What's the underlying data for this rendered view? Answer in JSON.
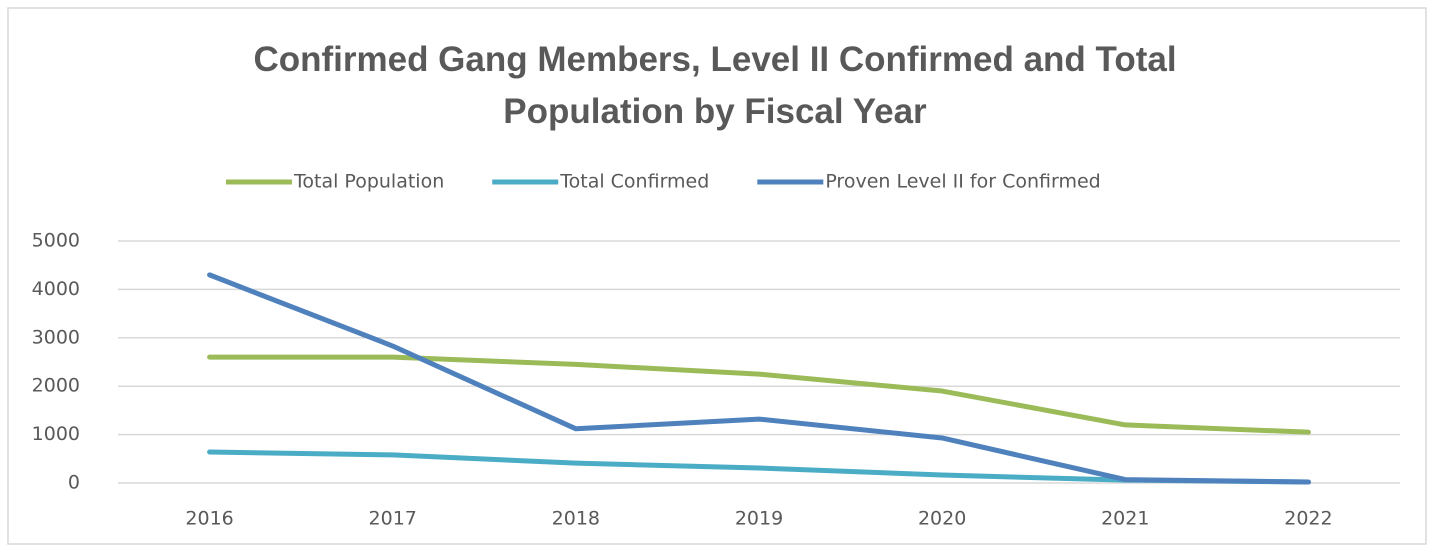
{
  "chart_data": {
    "type": "line",
    "title": "Confirmed Gang Members, Level II Confirmed and Total Population by Fiscal Year",
    "categories": [
      "2016",
      "2017",
      "2018",
      "2019",
      "2020",
      "2021",
      "2022"
    ],
    "series": [
      {
        "name": "Total Population",
        "color": "#9bbb59",
        "values": [
          2600,
          2600,
          2450,
          2250,
          1900,
          1200,
          1050
        ]
      },
      {
        "name": "Total Confirmed",
        "color": "#4bacc6",
        "values": [
          640,
          580,
          410,
          310,
          165,
          60,
          20
        ]
      },
      {
        "name": "Proven Level II for Confirmed",
        "color": "#4f81bd",
        "values": [
          4300,
          2830,
          1120,
          1320,
          930,
          70,
          20
        ]
      }
    ],
    "ylim": [
      0,
      5000
    ],
    "yticks": [
      0,
      1000,
      2000,
      3000,
      4000,
      5000
    ],
    "grid": true,
    "legend": "top"
  }
}
